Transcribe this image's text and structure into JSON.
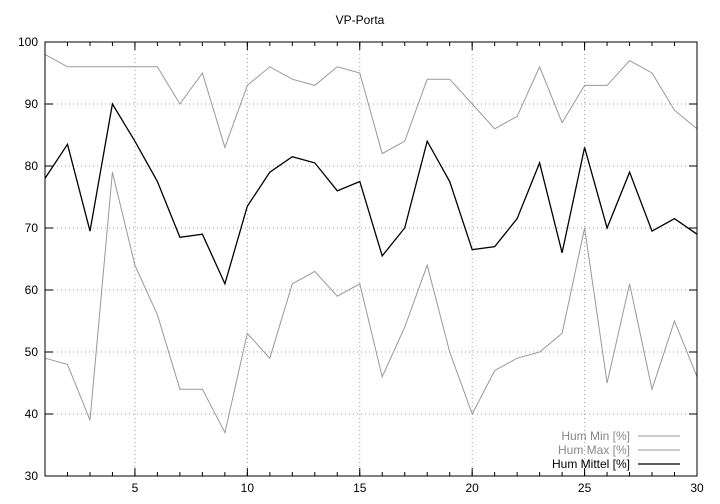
{
  "chart_data": {
    "type": "line",
    "title": "VP-Porta",
    "xlabel": "",
    "ylabel": "",
    "xlim": [
      1,
      30
    ],
    "ylim": [
      30,
      100
    ],
    "xticks": [
      5,
      10,
      15,
      20,
      25,
      30
    ],
    "yticks": [
      30,
      40,
      50,
      60,
      70,
      80,
      90,
      100
    ],
    "grid": true,
    "legend_position": "bottom-right",
    "x": [
      1,
      2,
      3,
      4,
      5,
      6,
      7,
      8,
      9,
      10,
      11,
      12,
      13,
      14,
      15,
      16,
      17,
      18,
      19,
      20,
      21,
      22,
      23,
      24,
      25,
      26,
      27,
      28,
      29,
      30
    ],
    "series": [
      {
        "name": "Hum Min [%]",
        "color": "#999999",
        "values": [
          49,
          48,
          39,
          79,
          64,
          56,
          44,
          44,
          37,
          53,
          49,
          61,
          63,
          59,
          61,
          46,
          54,
          64,
          50,
          40,
          47,
          49,
          50,
          53,
          70,
          45,
          61,
          44,
          55,
          46
        ]
      },
      {
        "name": "Hum Max [%]",
        "color": "#999999",
        "values": [
          98,
          96,
          96,
          96,
          96,
          96,
          90,
          95,
          83,
          93,
          96,
          94,
          93,
          96,
          95,
          82,
          84,
          94,
          94,
          90,
          86,
          88,
          96,
          87,
          93,
          93,
          97,
          95,
          89,
          86
        ]
      },
      {
        "name": "Hum Mittel [%]",
        "color": "#000000",
        "values": [
          78,
          83.5,
          69.5,
          90,
          84,
          77.5,
          68.5,
          69,
          61,
          73.5,
          79,
          81.5,
          80.5,
          76,
          77.5,
          65.5,
          70,
          84,
          77.5,
          66.5,
          67,
          71.5,
          80.5,
          66,
          83,
          70,
          79,
          69.5,
          71.5,
          69
        ]
      }
    ]
  }
}
